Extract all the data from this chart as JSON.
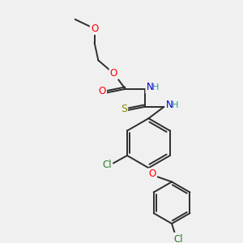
{
  "bg_color": "#f0f0f0",
  "bond_color": "#2d2d2d",
  "figsize": [
    3.0,
    3.0
  ],
  "dpi": 100,
  "atom_colors": {
    "O": "#ff0000",
    "N": "#0000cc",
    "H": "#2d9d9d",
    "S": "#888800",
    "Cl": "#2d7a2d",
    "C": "#2d2d2d"
  }
}
